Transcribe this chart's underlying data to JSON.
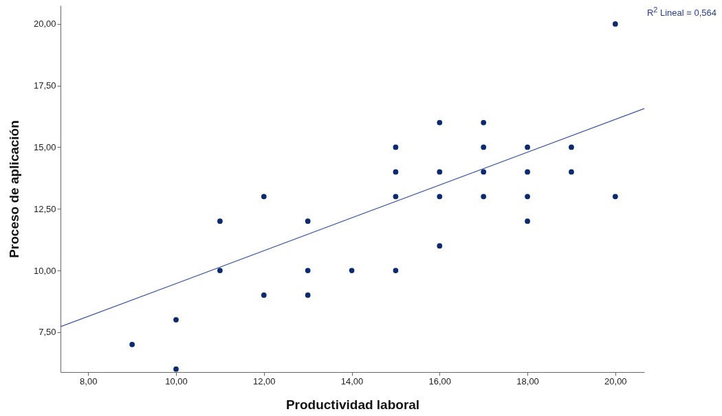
{
  "chart_data": {
    "type": "scatter",
    "xlabel": "Productividad laboral",
    "ylabel": "Proceso de aplicación",
    "grid": false,
    "xlim": [
      7.37,
      20.66
    ],
    "ylim": [
      5.88,
      20.75
    ],
    "xticks": [
      {
        "value": 8,
        "label": "8,00"
      },
      {
        "value": 10,
        "label": "10,00"
      },
      {
        "value": 12,
        "label": "12,00"
      },
      {
        "value": 14,
        "label": "14,00"
      },
      {
        "value": 16,
        "label": "16,00"
      },
      {
        "value": 18,
        "label": "18,00"
      },
      {
        "value": 20,
        "label": "20,00"
      }
    ],
    "yticks": [
      {
        "value": 7.5,
        "label": "7,50"
      },
      {
        "value": 10,
        "label": "10,00"
      },
      {
        "value": 12.5,
        "label": "12,50"
      },
      {
        "value": 15,
        "label": "15,00"
      },
      {
        "value": 17.5,
        "label": "17,50"
      },
      {
        "value": 20,
        "label": "20,00"
      }
    ],
    "annotations": [
      "R$^{2}$ Lineal = 0,564"
    ],
    "series": [
      {
        "marker": "circle",
        "color": "#0c2a6e",
        "x": [
          9,
          10,
          10,
          11,
          11,
          12,
          12,
          13,
          13,
          13,
          14,
          15,
          15,
          15,
          15,
          16,
          16,
          16,
          16,
          17,
          17,
          17,
          17,
          18,
          18,
          18,
          18,
          19,
          19,
          20,
          20
        ],
        "values": [
          7,
          8,
          6,
          12,
          10,
          13,
          9,
          12,
          10,
          9,
          10,
          15,
          14,
          13,
          10,
          16,
          14,
          13,
          11,
          16,
          15,
          14,
          13,
          15,
          14,
          13,
          12,
          15,
          14,
          20,
          13
        ]
      },
      {
        "type": "line",
        "color": "#3d55a0",
        "line_style": "solid",
        "x": [
          7.37,
          20.66
        ],
        "values": [
          7.72,
          16.57
        ]
      }
    ]
  }
}
